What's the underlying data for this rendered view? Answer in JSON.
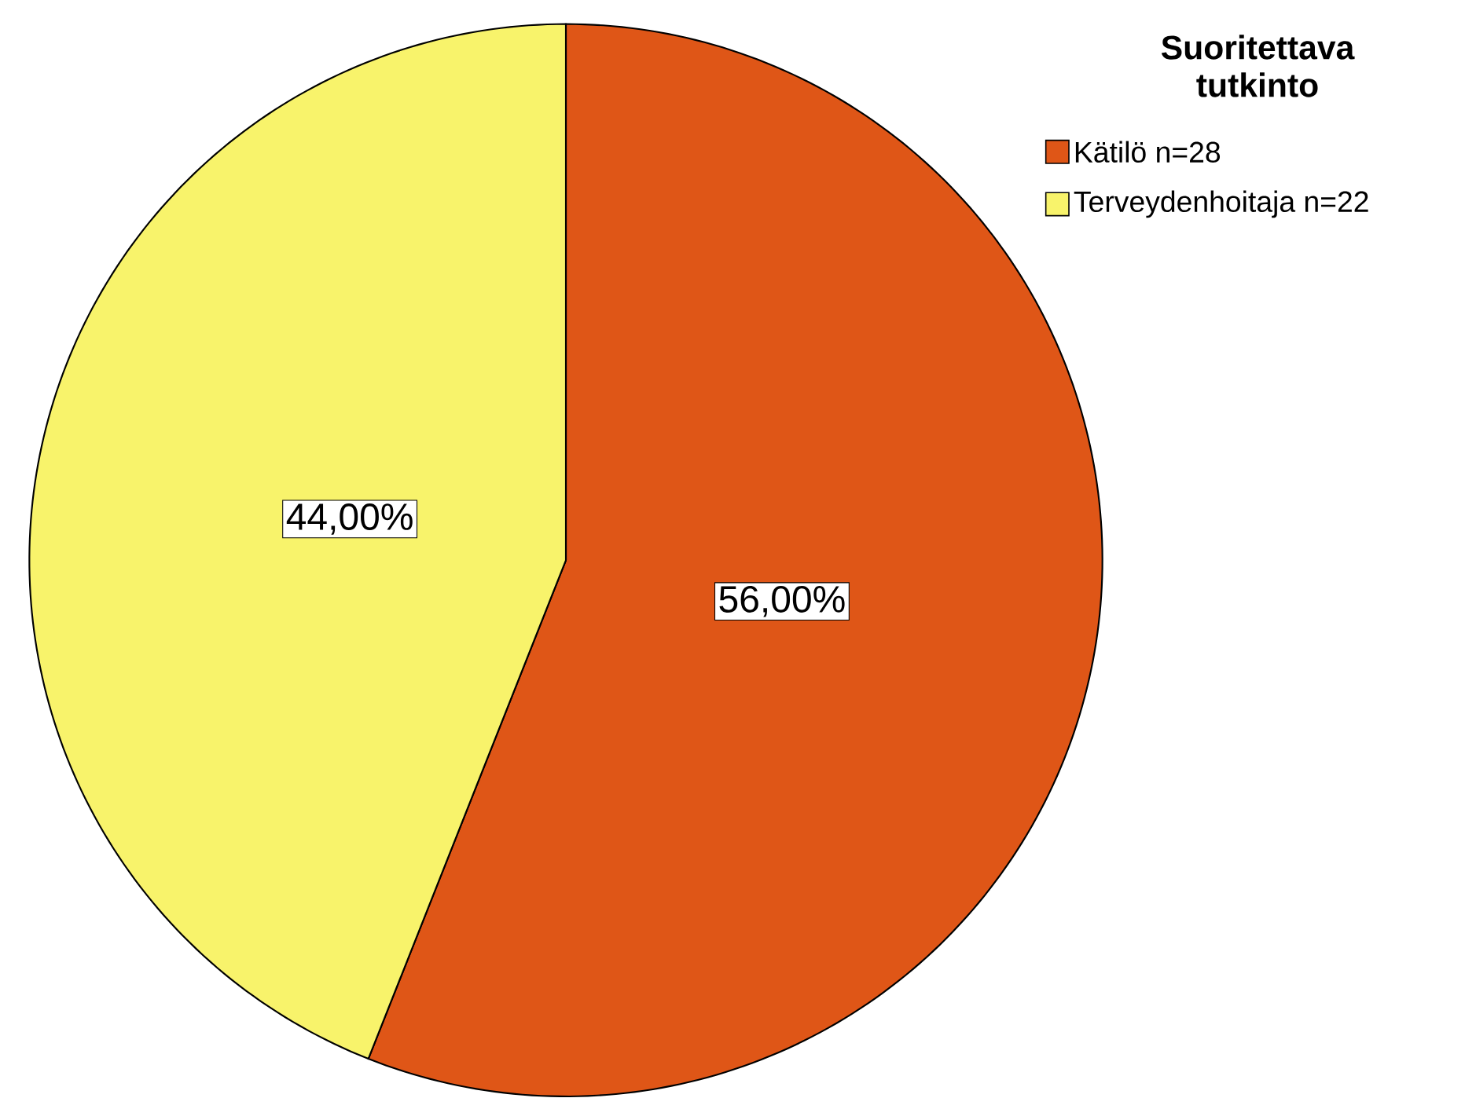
{
  "chart_data": {
    "type": "pie",
    "legend_title": "Suoritettava tutkinto",
    "categories": [
      "Kätilö n=28",
      "Terveydenhoitaja n=22"
    ],
    "values": [
      56,
      44
    ],
    "colors": [
      "#df5617",
      "#f8f36b"
    ],
    "value_labels": [
      "56,00%",
      "44,00%"
    ],
    "legend": "top right"
  }
}
